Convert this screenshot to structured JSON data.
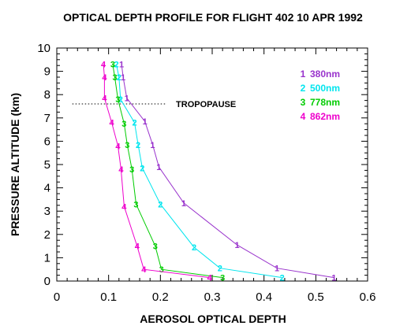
{
  "chart_data": {
    "type": "line",
    "title": "OPTICAL DEPTH PROFILE FOR FLIGHT 402 10 APR 1992",
    "xlabel": "AEROSOL OPTICAL DEPTH",
    "ylabel": "PRESSURE ALTITUDE (km)",
    "xlim": [
      0,
      0.6
    ],
    "ylim": [
      0,
      10
    ],
    "xticks": [
      "0",
      "0.1",
      "0.2",
      "0.3",
      "0.4",
      "0.5",
      "0.6"
    ],
    "yticks": [
      "0",
      "1",
      "2",
      "3",
      "4",
      "5",
      "6",
      "7",
      "8",
      "9",
      "10"
    ],
    "grid": false,
    "legend_position": "top-right",
    "series": [
      {
        "marker": "1",
        "name": "380nm",
        "color": "#9933cc",
        "points": [
          [
            0.535,
            0.15
          ],
          [
            0.425,
            0.55
          ],
          [
            0.348,
            1.55
          ],
          [
            0.245,
            3.35
          ],
          [
            0.197,
            4.9
          ],
          [
            0.185,
            5.85
          ],
          [
            0.17,
            6.85
          ],
          [
            0.135,
            7.85
          ],
          [
            0.128,
            8.75
          ],
          [
            0.125,
            9.3
          ]
        ]
      },
      {
        "marker": "2",
        "name": "500nm",
        "color": "#00e5ee",
        "points": [
          [
            0.435,
            0.15
          ],
          [
            0.315,
            0.55
          ],
          [
            0.265,
            1.45
          ],
          [
            0.2,
            3.3
          ],
          [
            0.165,
            4.85
          ],
          [
            0.157,
            5.85
          ],
          [
            0.15,
            6.8
          ],
          [
            0.123,
            7.8
          ],
          [
            0.12,
            8.75
          ],
          [
            0.115,
            9.3
          ]
        ]
      },
      {
        "marker": "3",
        "name": "778nm",
        "color": "#00cc00",
        "points": [
          [
            0.32,
            0.15
          ],
          [
            0.202,
            0.5
          ],
          [
            0.19,
            1.5
          ],
          [
            0.153,
            3.3
          ],
          [
            0.145,
            4.8
          ],
          [
            0.136,
            5.85
          ],
          [
            0.13,
            6.75
          ],
          [
            0.118,
            7.8
          ],
          [
            0.112,
            8.75
          ],
          [
            0.108,
            9.3
          ]
        ]
      },
      {
        "marker": "4",
        "name": "862nm",
        "color": "#ee00cc",
        "points": [
          [
            0.295,
            0.15
          ],
          [
            0.168,
            0.5
          ],
          [
            0.155,
            1.5
          ],
          [
            0.13,
            3.2
          ],
          [
            0.124,
            4.8
          ],
          [
            0.118,
            5.8
          ],
          [
            0.106,
            6.8
          ],
          [
            0.092,
            7.85
          ],
          [
            0.092,
            8.75
          ],
          [
            0.09,
            9.3
          ]
        ]
      }
    ],
    "annotations": [
      {
        "text": "TROPOPAUSE",
        "x": 0.23,
        "y": 7.6
      }
    ],
    "reference_lines": [
      {
        "type": "horizontal",
        "y": 7.6,
        "x_range": [
          0.03,
          0.21
        ],
        "style": "dotted"
      }
    ]
  }
}
